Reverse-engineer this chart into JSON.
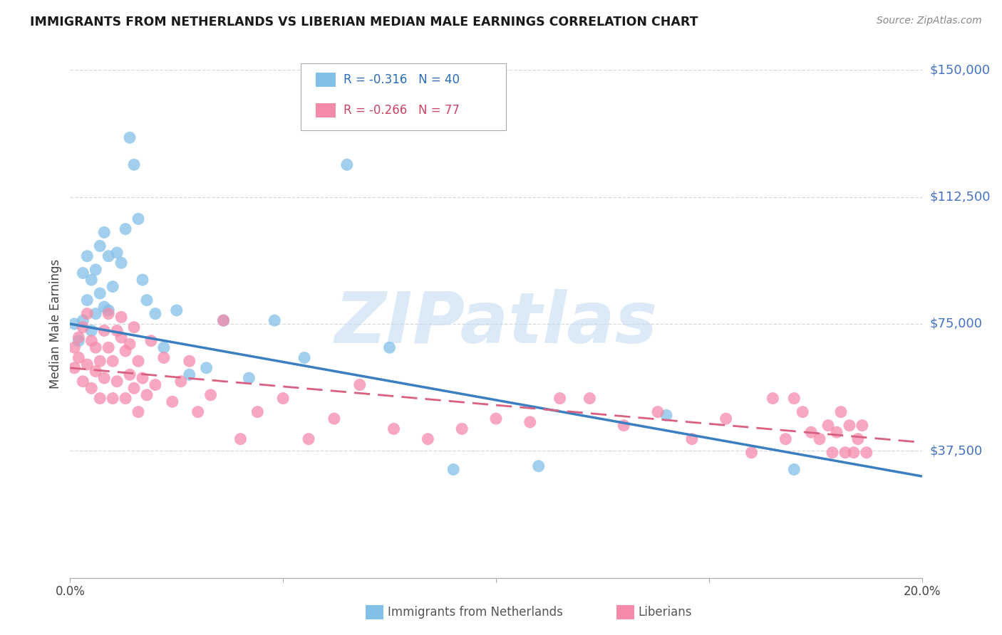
{
  "title": "IMMIGRANTS FROM NETHERLANDS VS LIBERIAN MEDIAN MALE EARNINGS CORRELATION CHART",
  "source": "Source: ZipAtlas.com",
  "ylabel": "Median Male Earnings",
  "xlim": [
    0.0,
    0.2
  ],
  "ylim": [
    0,
    150000
  ],
  "legend1_R": "-0.316",
  "legend1_N": "40",
  "legend2_R": "-0.266",
  "legend2_N": "77",
  "series1_color": "#82c0e8",
  "series2_color": "#f58aaa",
  "trendline1_color": "#3a7fc1",
  "trendline2_color": "#d96080",
  "grid_color": "#d8d8d8",
  "watermark_color": "#c5ddf2",
  "netherlands_x": [
    0.001,
    0.002,
    0.003,
    0.003,
    0.004,
    0.004,
    0.005,
    0.005,
    0.006,
    0.006,
    0.007,
    0.007,
    0.008,
    0.008,
    0.009,
    0.009,
    0.01,
    0.011,
    0.012,
    0.013,
    0.014,
    0.015,
    0.016,
    0.017,
    0.018,
    0.02,
    0.022,
    0.025,
    0.028,
    0.032,
    0.036,
    0.042,
    0.048,
    0.055,
    0.065,
    0.075,
    0.09,
    0.11,
    0.14,
    0.17
  ],
  "netherlands_y": [
    75000,
    70000,
    90000,
    76000,
    95000,
    82000,
    88000,
    73000,
    91000,
    78000,
    98000,
    84000,
    102000,
    80000,
    95000,
    79000,
    86000,
    96000,
    93000,
    103000,
    130000,
    122000,
    106000,
    88000,
    82000,
    78000,
    68000,
    79000,
    60000,
    62000,
    76000,
    59000,
    76000,
    65000,
    122000,
    68000,
    32000,
    33000,
    48000,
    32000
  ],
  "liberian_x": [
    0.001,
    0.001,
    0.002,
    0.002,
    0.003,
    0.003,
    0.004,
    0.004,
    0.005,
    0.005,
    0.006,
    0.006,
    0.007,
    0.007,
    0.008,
    0.008,
    0.009,
    0.009,
    0.01,
    0.01,
    0.011,
    0.011,
    0.012,
    0.012,
    0.013,
    0.013,
    0.014,
    0.014,
    0.015,
    0.015,
    0.016,
    0.016,
    0.017,
    0.018,
    0.019,
    0.02,
    0.022,
    0.024,
    0.026,
    0.028,
    0.03,
    0.033,
    0.036,
    0.04,
    0.044,
    0.05,
    0.056,
    0.062,
    0.068,
    0.076,
    0.084,
    0.092,
    0.1,
    0.108,
    0.115,
    0.122,
    0.13,
    0.138,
    0.146,
    0.154,
    0.16,
    0.165,
    0.168,
    0.17,
    0.172,
    0.174,
    0.176,
    0.178,
    0.179,
    0.18,
    0.181,
    0.182,
    0.183,
    0.184,
    0.185,
    0.186,
    0.187
  ],
  "liberian_y": [
    68000,
    62000,
    71000,
    65000,
    74000,
    58000,
    78000,
    63000,
    70000,
    56000,
    68000,
    61000,
    64000,
    53000,
    73000,
    59000,
    78000,
    68000,
    64000,
    53000,
    73000,
    58000,
    77000,
    71000,
    67000,
    53000,
    69000,
    60000,
    74000,
    56000,
    64000,
    49000,
    59000,
    54000,
    70000,
    57000,
    65000,
    52000,
    58000,
    64000,
    49000,
    54000,
    76000,
    41000,
    49000,
    53000,
    41000,
    47000,
    57000,
    44000,
    41000,
    44000,
    47000,
    46000,
    53000,
    53000,
    45000,
    49000,
    41000,
    47000,
    37000,
    53000,
    41000,
    53000,
    49000,
    43000,
    41000,
    45000,
    37000,
    43000,
    49000,
    37000,
    45000,
    37000,
    41000,
    45000,
    37000
  ]
}
